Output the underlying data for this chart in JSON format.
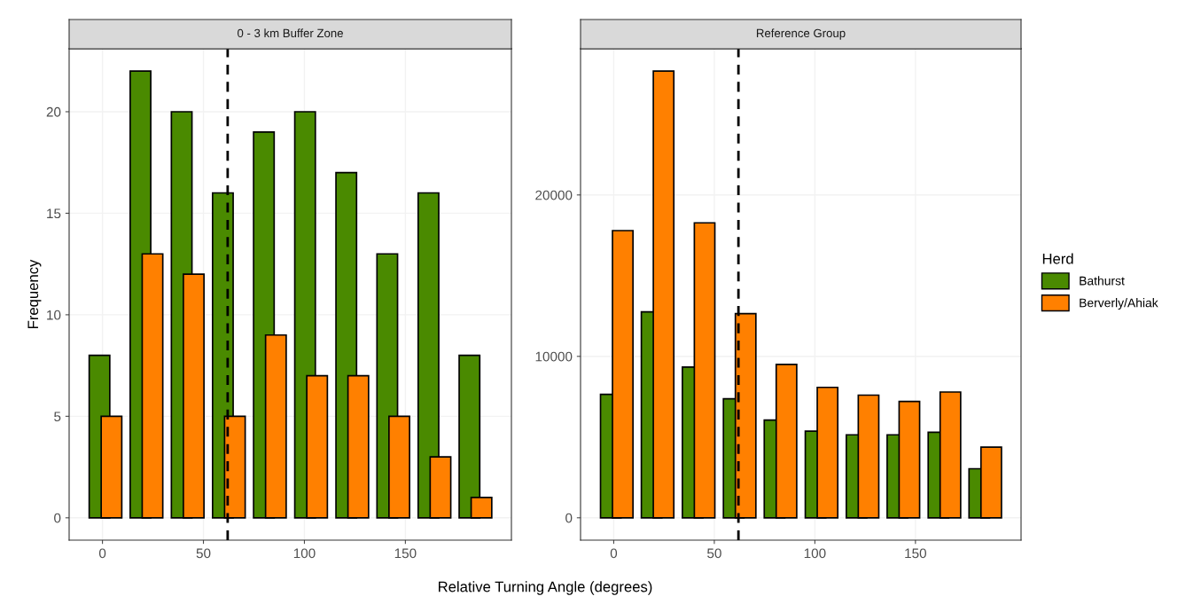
{
  "chart_data": [
    {
      "type": "bar",
      "title": "0 - 3 km Buffer Zone",
      "xlabel": "Relative Turning Angle (degrees)",
      "ylabel": "Frequency",
      "x": [
        1.5,
        21.8,
        42.2,
        62.6,
        82.9,
        103.3,
        123.7,
        144.0,
        164.4,
        184.7
      ],
      "series": [
        {
          "color": "#4a8a00",
          "values": [
            8,
            22,
            20,
            16,
            19,
            20,
            17,
            13,
            16,
            8
          ]
        },
        {
          "color": "#ff8000",
          "values": [
            5,
            13,
            12,
            5,
            9,
            7,
            7,
            5,
            3,
            1
          ]
        }
      ],
      "xlim": [
        -16.5,
        202.5
      ],
      "xticks": [
        0,
        50,
        100,
        150
      ],
      "ylim": [
        -1.1,
        23.1
      ],
      "yticks": [
        0,
        5,
        10,
        15,
        20
      ],
      "ref_lines": [
        {
          "axis": "x",
          "value": 62,
          "color": "#000000",
          "line_style": "dashed"
        }
      ],
      "grid": true
    },
    {
      "type": "bar",
      "title": "Reference Group",
      "legend_title": "Herd",
      "x": [
        1.5,
        21.8,
        42.2,
        62.6,
        82.9,
        103.3,
        123.7,
        144.0,
        164.4,
        184.7
      ],
      "series": [
        {
          "name": "Bathurst",
          "color": "#4a8a00",
          "values": [
            7650,
            12760,
            9340,
            7370,
            6050,
            5370,
            5140,
            5140,
            5300,
            3040
          ]
        },
        {
          "name": "Berverly/Ahiak",
          "color": "#ff8000",
          "values": [
            17790,
            27670,
            18270,
            12650,
            9500,
            8080,
            7600,
            7210,
            7790,
            4380
          ]
        }
      ],
      "xlim": [
        -16.5,
        202.5
      ],
      "xticks": [
        0,
        50,
        100,
        150
      ],
      "ylim": [
        -1385,
        29055
      ],
      "yticks": [
        0,
        10000,
        20000
      ],
      "ref_lines": [
        {
          "axis": "x",
          "value": 62,
          "color": "#000000",
          "line_style": "dashed"
        }
      ],
      "grid": true,
      "legend": "right"
    }
  ]
}
